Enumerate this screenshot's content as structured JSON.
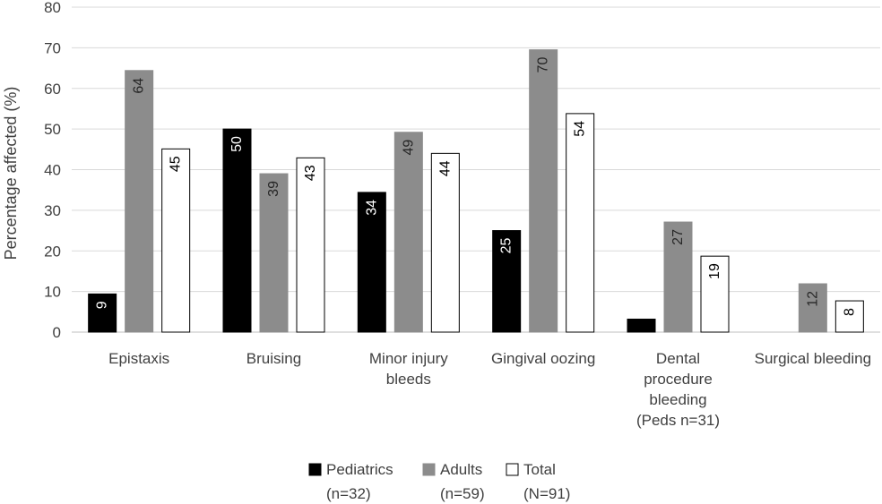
{
  "chart_data": {
    "type": "bar",
    "title": "",
    "xlabel": "",
    "ylabel": "Percentage affected (%)",
    "ylim": [
      0,
      80
    ],
    "yticks": [
      0,
      10,
      20,
      30,
      40,
      50,
      60,
      70,
      80
    ],
    "grid": true,
    "legend_position": "bottom",
    "categories": [
      [
        "Epistaxis"
      ],
      [
        "Bruising"
      ],
      [
        "Minor injury",
        "bleeds"
      ],
      [
        "Gingival oozing"
      ],
      [
        "Dental",
        "procedure",
        "bleeding",
        "(Peds n=31)"
      ],
      [
        "Surgical bleeding"
      ]
    ],
    "series": [
      {
        "name": [
          "Pediatrics",
          "(n=32)"
        ],
        "color": "#000000",
        "label_color": "#ffffff",
        "border": "#000000",
        "values": [
          9.4,
          50,
          34.4,
          25,
          3.2,
          0
        ],
        "labels": [
          "9",
          "50",
          "34",
          "25",
          "",
          ""
        ]
      },
      {
        "name": [
          "Adults",
          "(n=59)"
        ],
        "color": "#8c8c8c",
        "label_color": "#262626",
        "border": "#8c8c8c",
        "values": [
          64.4,
          39,
          49.2,
          69.5,
          27.1,
          11.9
        ],
        "labels": [
          "64",
          "39",
          "49",
          "70",
          "27",
          "12"
        ]
      },
      {
        "name": [
          "Total",
          "(N=91)"
        ],
        "color": "#ffffff",
        "label_color": "#000000",
        "border": "#000000",
        "values": [
          45.1,
          42.9,
          44,
          53.8,
          18.7,
          7.7
        ],
        "labels": [
          "45",
          "43",
          "44",
          "54",
          "19",
          "8"
        ]
      }
    ]
  }
}
